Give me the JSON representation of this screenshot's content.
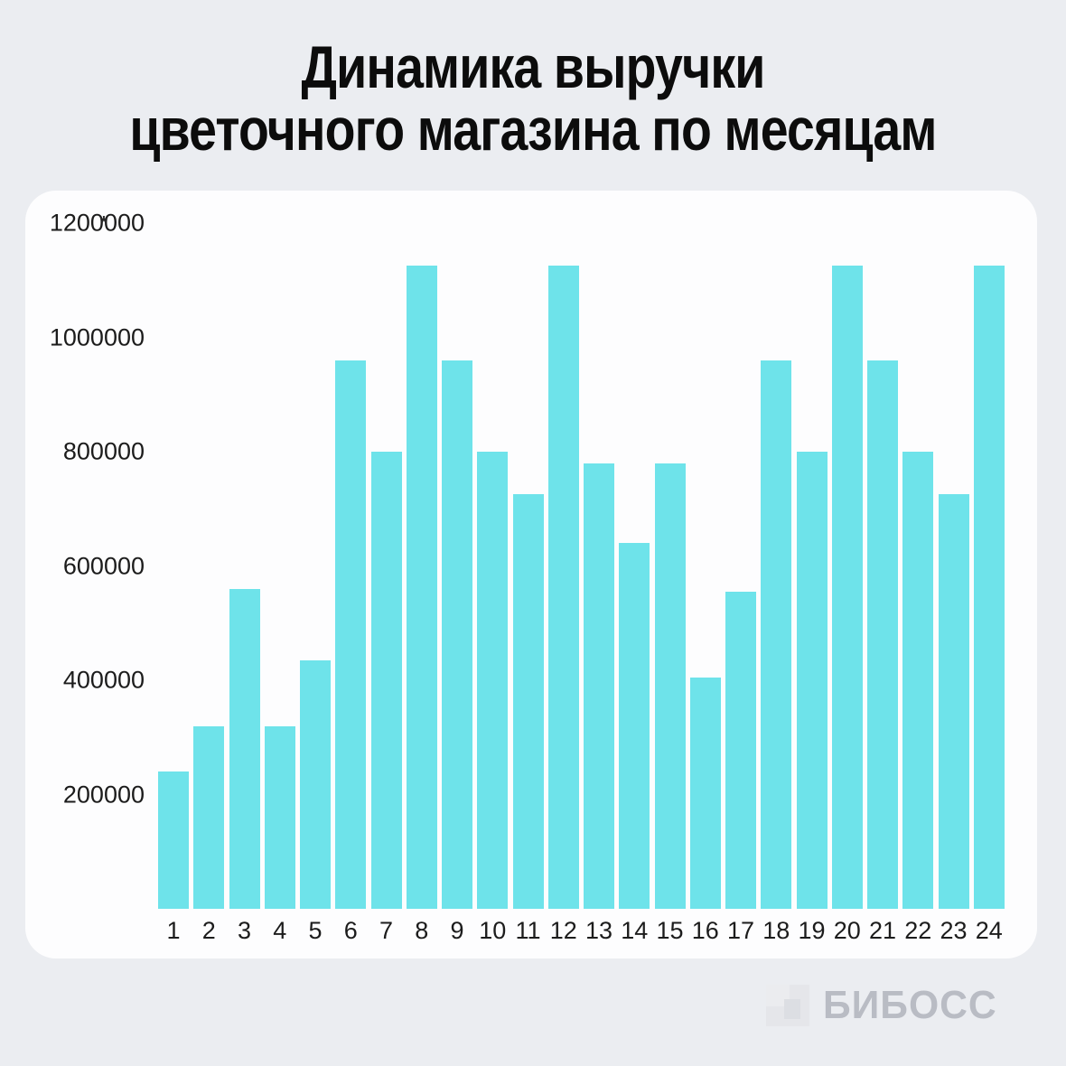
{
  "title": {
    "line1": "Динамика выручки",
    "line2": "цветочного магазина по месяцам"
  },
  "chart_data": {
    "type": "bar",
    "title": "Динамика выручки цветочного магазина по месяцам",
    "categories": [
      "1",
      "2",
      "3",
      "4",
      "5",
      "6",
      "7",
      "8",
      "9",
      "10",
      "11",
      "12",
      "13",
      "14",
      "15",
      "16",
      "17",
      "18",
      "19",
      "20",
      "21",
      "22",
      "23",
      "24"
    ],
    "values": [
      240000,
      320000,
      560000,
      320000,
      435000,
      960000,
      800000,
      1125000,
      960000,
      800000,
      725000,
      1125000,
      780000,
      640000,
      780000,
      405000,
      555000,
      960000,
      800000,
      1125000,
      960000,
      800000,
      725000,
      1125000
    ],
    "xlabel": "",
    "ylabel": "",
    "ylim": [
      0,
      1200000
    ],
    "yticks": [
      1200000,
      1000000,
      800000,
      600000,
      400000,
      200000
    ],
    "ytick_labels": [
      "1200000",
      "1000000",
      "800000",
      "600000",
      "400000",
      "200000"
    ],
    "grid": false,
    "legend": false,
    "bar_color": "#6ee3ea"
  },
  "axis_mark": "*",
  "logo": {
    "text": "БИБОСС",
    "icon": "biboss-square-icon"
  },
  "colors": {
    "background": "#ebedf1",
    "card": "#fdfdfe",
    "bar": "#6ee3ea",
    "title_text": "#0c0c0c",
    "axis_text": "#1c1c1c",
    "logo_text": "#b9bcc4",
    "logo_square": "#e5e6ea"
  }
}
